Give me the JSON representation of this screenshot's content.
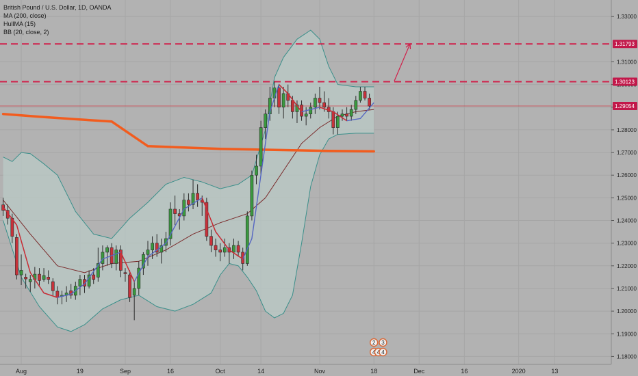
{
  "legend": {
    "symbol": "British Pound / U.S. Dollar, 1D, OANDA",
    "ma": "MA (200, close)",
    "hull": "HullMA (15)",
    "bb": "BB (20, close, 2)"
  },
  "colors": {
    "background": "#b2b2b2",
    "bull": "#3a9a3f",
    "bear": "#c8323a",
    "ma200": "#f25c1e",
    "hull": "#5566c2",
    "bb_basis": "#7a2a2a",
    "bb_bands": "#3a8f8a",
    "bb_fill": "#b9c9c6",
    "dashed": "#d0204a",
    "price_line": "#d0404a"
  },
  "chart_data": {
    "type": "candlestick",
    "ylim": [
      1.1765,
      1.3373
    ],
    "y_ticks": [
      "1.33000",
      "1.31000",
      "1.30000",
      "1.29000",
      "1.28000",
      "1.27000",
      "1.26000",
      "1.25000",
      "1.24000",
      "1.23000",
      "1.22000",
      "1.21000",
      "1.20000",
      "1.19000",
      "1.18000"
    ],
    "x_ticks": [
      {
        "label": "Aug",
        "bar": 4
      },
      {
        "label": "19",
        "bar": 17
      },
      {
        "label": "Sep",
        "bar": 27
      },
      {
        "label": "16",
        "bar": 37
      },
      {
        "label": "Oct",
        "bar": 48
      },
      {
        "label": "14",
        "bar": 57
      },
      {
        "label": "Nov",
        "bar": 70
      },
      {
        "label": "18",
        "bar": 82
      },
      {
        "label": "Dec",
        "bar": 92
      },
      {
        "label": "16",
        "bar": 102
      },
      {
        "label": "2020",
        "bar": 114
      },
      {
        "label": "13",
        "bar": 122
      }
    ],
    "xlim": [
      -0.7,
      134.5
    ],
    "candles": [
      [
        1.2469,
        1.25,
        1.242,
        1.2445
      ],
      [
        1.2445,
        1.247,
        1.2382,
        1.241
      ],
      [
        1.241,
        1.243,
        1.23,
        1.233
      ],
      [
        1.2325,
        1.234,
        1.214,
        1.216
      ],
      [
        1.216,
        1.225,
        1.2115,
        1.218
      ],
      [
        1.215,
        1.2165,
        1.21,
        1.2142
      ],
      [
        1.213,
        1.216,
        1.2085,
        1.214
      ],
      [
        1.214,
        1.2195,
        1.21,
        1.2163
      ],
      [
        1.2163,
        1.219,
        1.211,
        1.2135
      ],
      [
        1.214,
        1.219,
        1.213,
        1.2157
      ],
      [
        1.215,
        1.218,
        1.212,
        1.214
      ],
      [
        1.213,
        1.2145,
        1.207,
        1.209
      ],
      [
        1.2088,
        1.211,
        1.203,
        1.206
      ],
      [
        1.2065,
        1.209,
        1.203,
        1.207
      ],
      [
        1.207,
        1.211,
        1.204,
        1.208
      ],
      [
        1.209,
        1.212,
        1.2055,
        1.207
      ],
      [
        1.207,
        1.213,
        1.205,
        1.211
      ],
      [
        1.211,
        1.216,
        1.207,
        1.214
      ],
      [
        1.214,
        1.216,
        1.208,
        1.211
      ],
      [
        1.211,
        1.218,
        1.21,
        1.216
      ],
      [
        1.216,
        1.219,
        1.212,
        1.214
      ],
      [
        1.215,
        1.228,
        1.213,
        1.221
      ],
      [
        1.221,
        1.229,
        1.218,
        1.226
      ],
      [
        1.226,
        1.229,
        1.22,
        1.228
      ],
      [
        1.228,
        1.23,
        1.219,
        1.221
      ],
      [
        1.221,
        1.229,
        1.218,
        1.227
      ],
      [
        1.227,
        1.229,
        1.215,
        1.218
      ],
      [
        1.217,
        1.219,
        1.213,
        1.2165
      ],
      [
        1.216,
        1.218,
        1.204,
        1.206
      ],
      [
        1.207,
        1.213,
        1.196,
        1.21
      ],
      [
        1.21,
        1.222,
        1.207,
        1.219
      ],
      [
        1.219,
        1.226,
        1.216,
        1.225
      ],
      [
        1.225,
        1.231,
        1.22,
        1.227
      ],
      [
        1.227,
        1.233,
        1.223,
        1.23
      ],
      [
        1.23,
        1.234,
        1.224,
        1.226
      ],
      [
        1.226,
        1.232,
        1.221,
        1.229
      ],
      [
        1.229,
        1.235,
        1.226,
        1.232
      ],
      [
        1.232,
        1.248,
        1.229,
        1.245
      ],
      [
        1.245,
        1.251,
        1.238,
        1.243
      ],
      [
        1.243,
        1.245,
        1.236,
        1.242
      ],
      [
        1.242,
        1.252,
        1.24,
        1.249
      ],
      [
        1.249,
        1.252,
        1.244,
        1.247
      ],
      [
        1.247,
        1.258,
        1.245,
        1.252
      ],
      [
        1.252,
        1.256,
        1.246,
        1.249
      ],
      [
        1.249,
        1.251,
        1.242,
        1.248
      ],
      [
        1.248,
        1.25,
        1.231,
        1.233
      ],
      [
        1.233,
        1.236,
        1.226,
        1.229
      ],
      [
        1.229,
        1.232,
        1.224,
        1.227
      ],
      [
        1.227,
        1.23,
        1.222,
        1.226
      ],
      [
        1.226,
        1.232,
        1.224,
        1.228
      ],
      [
        1.228,
        1.23,
        1.221,
        1.226
      ],
      [
        1.226,
        1.232,
        1.223,
        1.229
      ],
      [
        1.229,
        1.231,
        1.224,
        1.226
      ],
      [
        1.226,
        1.228,
        1.218,
        1.221
      ],
      [
        1.221,
        1.244,
        1.22,
        1.242
      ],
      [
        1.242,
        1.262,
        1.24,
        1.26
      ],
      [
        1.26,
        1.269,
        1.256,
        1.264
      ],
      [
        1.264,
        1.284,
        1.26,
        1.281
      ],
      [
        1.281,
        1.289,
        1.276,
        1.287
      ],
      [
        1.287,
        1.299,
        1.284,
        1.294
      ],
      [
        1.294,
        1.3013,
        1.29,
        1.2985
      ],
      [
        1.2985,
        1.3,
        1.287,
        1.29
      ],
      [
        1.29,
        1.299,
        1.285,
        1.296
      ],
      [
        1.296,
        1.3,
        1.29,
        1.293
      ],
      [
        1.293,
        1.295,
        1.285,
        1.288
      ],
      [
        1.288,
        1.293,
        1.283,
        1.291
      ],
      [
        1.291,
        1.293,
        1.284,
        1.286
      ],
      [
        1.286,
        1.29,
        1.282,
        1.287
      ],
      [
        1.287,
        1.292,
        1.285,
        1.29
      ],
      [
        1.29,
        1.296,
        1.287,
        1.294
      ],
      [
        1.294,
        1.299,
        1.289,
        1.292
      ],
      [
        1.292,
        1.297,
        1.288,
        1.29
      ],
      [
        1.29,
        1.294,
        1.285,
        1.288
      ],
      [
        1.288,
        1.29,
        1.278,
        1.281
      ],
      [
        1.281,
        1.288,
        1.278,
        1.286
      ],
      [
        1.286,
        1.289,
        1.284,
        1.287
      ],
      [
        1.287,
        1.29,
        1.284,
        1.286
      ],
      [
        1.286,
        1.291,
        1.284,
        1.289
      ],
      [
        1.289,
        1.295,
        1.287,
        1.293
      ],
      [
        1.293,
        1.299,
        1.292,
        1.297
      ],
      [
        1.297,
        1.299,
        1.293,
        1.294
      ],
      [
        1.294,
        1.296,
        1.289,
        1.2905
      ]
    ],
    "ma200": [
      [
        0,
        1.287
      ],
      [
        8,
        1.2858
      ],
      [
        16,
        1.2847
      ],
      [
        24,
        1.2837
      ],
      [
        32,
        1.2728
      ],
      [
        40,
        1.2722
      ],
      [
        48,
        1.2716
      ],
      [
        56,
        1.2713
      ],
      [
        64,
        1.271
      ],
      [
        72,
        1.2707
      ],
      [
        82,
        1.2705
      ]
    ],
    "hull": [
      [
        0,
        1.246
      ],
      [
        3,
        1.238
      ],
      [
        6,
        1.217
      ],
      [
        9,
        1.208
      ],
      [
        12,
        1.206
      ],
      [
        15,
        1.2075
      ],
      [
        18,
        1.212
      ],
      [
        22,
        1.223
      ],
      [
        26,
        1.226
      ],
      [
        29,
        1.213
      ],
      [
        32,
        1.224
      ],
      [
        36,
        1.23
      ],
      [
        40,
        1.245
      ],
      [
        44,
        1.25
      ],
      [
        47,
        1.235
      ],
      [
        50,
        1.227
      ],
      [
        53,
        1.223
      ],
      [
        55,
        1.232
      ],
      [
        57,
        1.26
      ],
      [
        59,
        1.288
      ],
      [
        61,
        1.3
      ],
      [
        63,
        1.296
      ],
      [
        66,
        1.288
      ],
      [
        70,
        1.29
      ],
      [
        73,
        1.288
      ],
      [
        76,
        1.284
      ],
      [
        79,
        1.285
      ],
      [
        82,
        1.292
      ]
    ],
    "bb_basis": [
      [
        0,
        1.249
      ],
      [
        6,
        1.234
      ],
      [
        12,
        1.22
      ],
      [
        18,
        1.217
      ],
      [
        24,
        1.221
      ],
      [
        30,
        1.222
      ],
      [
        36,
        1.227
      ],
      [
        42,
        1.234
      ],
      [
        48,
        1.239
      ],
      [
        54,
        1.243
      ],
      [
        58,
        1.25
      ],
      [
        62,
        1.262
      ],
      [
        66,
        1.274
      ],
      [
        70,
        1.281
      ],
      [
        74,
        1.286
      ],
      [
        78,
        1.288
      ],
      [
        82,
        1.289
      ]
    ],
    "bb_upper": [
      [
        0,
        1.268
      ],
      [
        2,
        1.266
      ],
      [
        4,
        1.27
      ],
      [
        6,
        1.2695
      ],
      [
        9,
        1.265
      ],
      [
        12,
        1.26
      ],
      [
        16,
        1.244
      ],
      [
        20,
        1.234
      ],
      [
        24,
        1.232
      ],
      [
        28,
        1.241
      ],
      [
        32,
        1.248
      ],
      [
        36,
        1.256
      ],
      [
        40,
        1.259
      ],
      [
        44,
        1.257
      ],
      [
        48,
        1.254
      ],
      [
        52,
        1.256
      ],
      [
        55,
        1.26
      ],
      [
        58,
        1.28
      ],
      [
        60,
        1.303
      ],
      [
        62,
        1.312
      ],
      [
        65,
        1.32
      ],
      [
        68,
        1.324
      ],
      [
        70,
        1.32
      ],
      [
        72,
        1.308
      ],
      [
        74,
        1.3
      ],
      [
        78,
        1.299
      ],
      [
        82,
        1.299
      ]
    ],
    "bb_lower": [
      [
        0,
        1.24
      ],
      [
        4,
        1.215
      ],
      [
        8,
        1.202
      ],
      [
        12,
        1.193
      ],
      [
        15,
        1.191
      ],
      [
        18,
        1.194
      ],
      [
        22,
        1.201
      ],
      [
        26,
        1.205
      ],
      [
        30,
        1.207
      ],
      [
        34,
        1.202
      ],
      [
        38,
        1.2
      ],
      [
        42,
        1.203
      ],
      [
        46,
        1.208
      ],
      [
        48,
        1.216
      ],
      [
        50,
        1.221
      ],
      [
        52,
        1.22
      ],
      [
        54,
        1.215
      ],
      [
        56,
        1.209
      ],
      [
        58,
        1.2
      ],
      [
        60,
        1.197
      ],
      [
        62,
        1.199
      ],
      [
        64,
        1.207
      ],
      [
        66,
        1.23
      ],
      [
        68,
        1.255
      ],
      [
        70,
        1.269
      ],
      [
        72,
        1.276
      ],
      [
        74,
        1.278
      ],
      [
        78,
        1.2785
      ],
      [
        82,
        1.2785
      ]
    ],
    "levels": [
      {
        "price": 1.31793,
        "label": "1.31793"
      },
      {
        "price": 1.30123,
        "label": "1.30123"
      }
    ],
    "last_price": {
      "price": 1.29054,
      "label": "1.29054"
    },
    "arrow": {
      "from": [
        86.5,
        1.3015
      ],
      "to": [
        90,
        1.318
      ]
    },
    "badges": [
      {
        "text": "2",
        "bar": 82,
        "row": 0
      },
      {
        "text": "3",
        "bar": 84,
        "row": 0
      },
      {
        "text": "4",
        "bar": 82,
        "row": 1
      },
      {
        "text": "4",
        "bar": 83,
        "row": 1
      },
      {
        "text": "4",
        "bar": 84,
        "row": 1
      }
    ]
  }
}
